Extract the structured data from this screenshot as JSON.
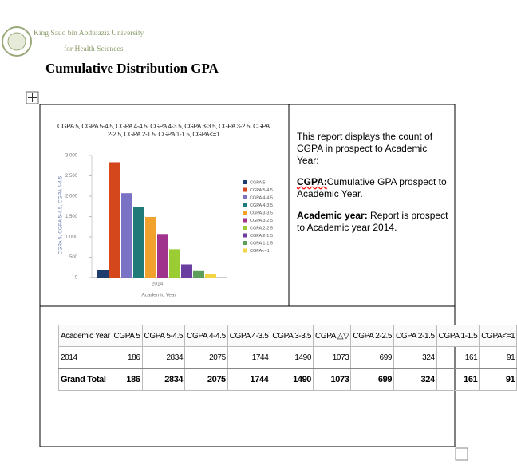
{
  "header": {
    "logo_line1": "King Saud bin Abdulaziz University",
    "logo_line2": "for Health Sciences"
  },
  "title": "Cumulative Distribution GPA",
  "chart_data": {
    "type": "bar",
    "title": "CGPA 5, CGPA 5-4.5, CGPA 4-4.5, CGPA 4-3.5, CGPA 3-3.5, CGPA 3-2.5, CGPA 2-2.5, CGPA 2-1.5, CGPA 1-1.5, CGPA<=1",
    "x_label": "Academic Year",
    "y_label": "CGPA 5, CGPA 5-4.5, CGPA 4-4.5",
    "categories": [
      "2014"
    ],
    "ylim": [
      0,
      3000
    ],
    "yticks": [
      0,
      500,
      {
        "value": 1000,
        "label": "1,000"
      },
      {
        "value": 1500,
        "label": "1,500"
      },
      {
        "value": 2000,
        "label": "2,000"
      },
      {
        "value": 2500,
        "label": "2,500"
      },
      {
        "value": 3000,
        "label": "3,000"
      }
    ],
    "series": [
      {
        "name": "CGPA 5",
        "color": "#1f3c6e",
        "values": [
          186
        ]
      },
      {
        "name": "CGPA 5-4.5",
        "color": "#d4461c",
        "values": [
          2834
        ]
      },
      {
        "name": "CGPA 4-4.5",
        "color": "#7a72c4",
        "values": [
          2075
        ]
      },
      {
        "name": "CGPA 4-3.5",
        "color": "#1f7a78",
        "values": [
          1744
        ]
      },
      {
        "name": "CGPA 3-3.5",
        "color": "#f0a12e",
        "values": [
          1490
        ]
      },
      {
        "name": "CGPA 3-2.5",
        "color": "#a0348c",
        "values": [
          1073
        ]
      },
      {
        "name": "CGPA 2-2.5",
        "color": "#9ccc34",
        "values": [
          699
        ]
      },
      {
        "name": "CGPA 2-1.5",
        "color": "#6b3fa0",
        "values": [
          324
        ]
      },
      {
        "name": "CGPA 1-1.5",
        "color": "#5c9e5a",
        "values": [
          161
        ]
      },
      {
        "name": "CGPA<=1",
        "color": "#f2d445",
        "values": [
          91
        ]
      }
    ]
  },
  "description": {
    "intro": "This report displays the count of CGPA in prospect to Academic Year:",
    "items": [
      {
        "term": "CGPA:",
        "text": "Cumulative GPA prospect to Academic Year."
      },
      {
        "term": "Academic year:",
        "text": " Report is prospect to Academic year 2014."
      }
    ]
  },
  "table": {
    "header": [
      "Academic Year",
      "CGPA 5",
      "CGPA 5-4.5",
      "CGPA 4-4.5",
      "CGPA 4-3.5",
      "CGPA 3-3.5",
      "CGPA △▽",
      "CGPA 2-2.5",
      "CGPA 2-1.5",
      "CGPA 1-1.5",
      "CGPA<=1"
    ],
    "rows": [
      [
        "2014",
        186,
        2834,
        2075,
        1744,
        1490,
        1073,
        699,
        324,
        161,
        91
      ],
      [
        "Grand Total",
        186,
        2834,
        2075,
        1744,
        1490,
        1073,
        699,
        324,
        161,
        91
      ]
    ]
  }
}
